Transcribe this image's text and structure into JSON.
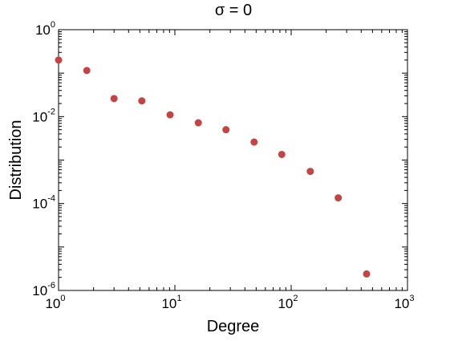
{
  "chart_data": {
    "type": "scatter",
    "title": "σ = 0",
    "xlabel": "Degree",
    "ylabel": "Distribution",
    "xscale": "log",
    "yscale": "log",
    "xlim": [
      1,
      1000
    ],
    "ylim": [
      1e-06,
      1
    ],
    "x_ticks": [
      {
        "base": "10",
        "exp": "0",
        "value": 1
      },
      {
        "base": "10",
        "exp": "1",
        "value": 10
      },
      {
        "base": "10",
        "exp": "2",
        "value": 100
      },
      {
        "base": "10",
        "exp": "3",
        "value": 1000
      }
    ],
    "y_ticks": [
      {
        "base": "10",
        "exp": "0",
        "value": 1
      },
      {
        "base": "10",
        "exp": "-2",
        "value": 0.01
      },
      {
        "base": "10",
        "exp": "-4",
        "value": 0.0001
      },
      {
        "base": "10",
        "exp": "-6",
        "value": 1e-06
      }
    ],
    "grid": false,
    "marker_color": "#c44444",
    "series": [
      {
        "x": [
          1,
          1.75,
          3.0,
          5.2,
          9.1,
          15.9,
          27.5,
          48,
          83,
          146,
          254,
          445
        ],
        "y": [
          0.2,
          0.115,
          0.026,
          0.023,
          0.011,
          0.0072,
          0.005,
          0.0026,
          0.00135,
          0.00055,
          0.000135,
          2.4e-06
        ]
      }
    ]
  }
}
